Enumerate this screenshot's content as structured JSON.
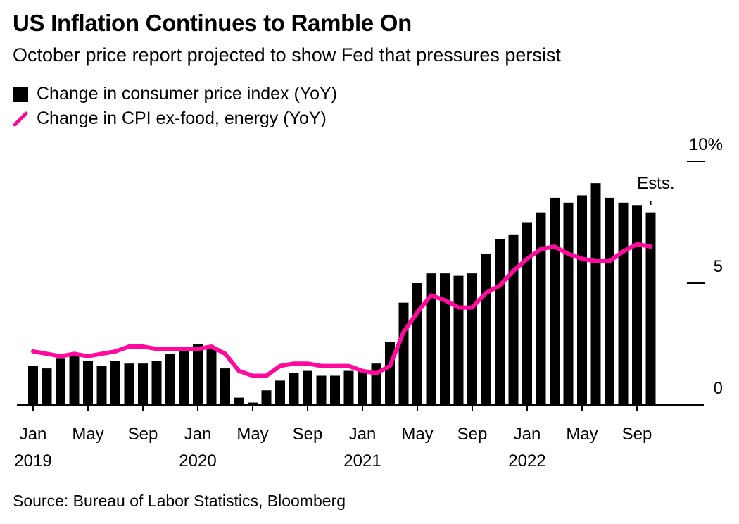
{
  "title": "US Inflation Continues to Ramble On",
  "subtitle": "October price report projected to show Fed that pressures persist",
  "source": "Source: Bureau of Labor Statistics, Bloomberg",
  "colors": {
    "bar": "#000000",
    "line": "#ff0a9c"
  },
  "chart_data": {
    "type": "bar",
    "series": [
      {
        "name": "Change in consumer price index (YoY)",
        "type": "bar",
        "values": [
          1.6,
          1.5,
          1.9,
          2.0,
          1.8,
          1.6,
          1.8,
          1.7,
          1.7,
          1.8,
          2.1,
          2.3,
          2.5,
          2.3,
          1.5,
          0.3,
          0.1,
          0.6,
          1.0,
          1.3,
          1.4,
          1.2,
          1.2,
          1.4,
          1.4,
          1.7,
          2.6,
          4.2,
          5.0,
          5.4,
          5.4,
          5.3,
          5.4,
          6.2,
          6.8,
          7.0,
          7.5,
          7.9,
          8.5,
          8.3,
          8.6,
          9.1,
          8.5,
          8.3,
          8.2,
          7.9
        ]
      },
      {
        "name": "Change in CPI ex-food, energy (YoY)",
        "type": "line",
        "values": [
          2.2,
          2.1,
          2.0,
          2.1,
          2.0,
          2.1,
          2.2,
          2.4,
          2.4,
          2.3,
          2.3,
          2.3,
          2.3,
          2.4,
          2.1,
          1.4,
          1.2,
          1.2,
          1.6,
          1.7,
          1.7,
          1.6,
          1.6,
          1.6,
          1.4,
          1.3,
          1.6,
          3.0,
          3.8,
          4.5,
          4.3,
          4.0,
          4.0,
          4.6,
          4.9,
          5.5,
          6.0,
          6.4,
          6.5,
          6.2,
          6.0,
          5.9,
          5.9,
          6.3,
          6.6,
          6.5
        ]
      }
    ],
    "start_month": "2019-01",
    "x_tick_labels": [
      "Jan",
      "May",
      "Sep",
      "Jan",
      "May",
      "Sep",
      "Jan",
      "May",
      "Sep",
      "Jan",
      "May",
      "Sep"
    ],
    "x_tick_years": [
      "2019",
      "",
      "",
      "2020",
      "",
      "",
      "2021",
      "",
      "",
      "2022",
      "",
      ""
    ],
    "y_ticks": [
      "10%",
      "5",
      "0"
    ],
    "y_tick_values": [
      10,
      5,
      0
    ],
    "ylim": [
      0,
      10
    ],
    "annotation": "Ests.",
    "annotation_index": 45,
    "xlabel": "",
    "ylabel": "",
    "grid": false,
    "legend_position": "top-left"
  }
}
